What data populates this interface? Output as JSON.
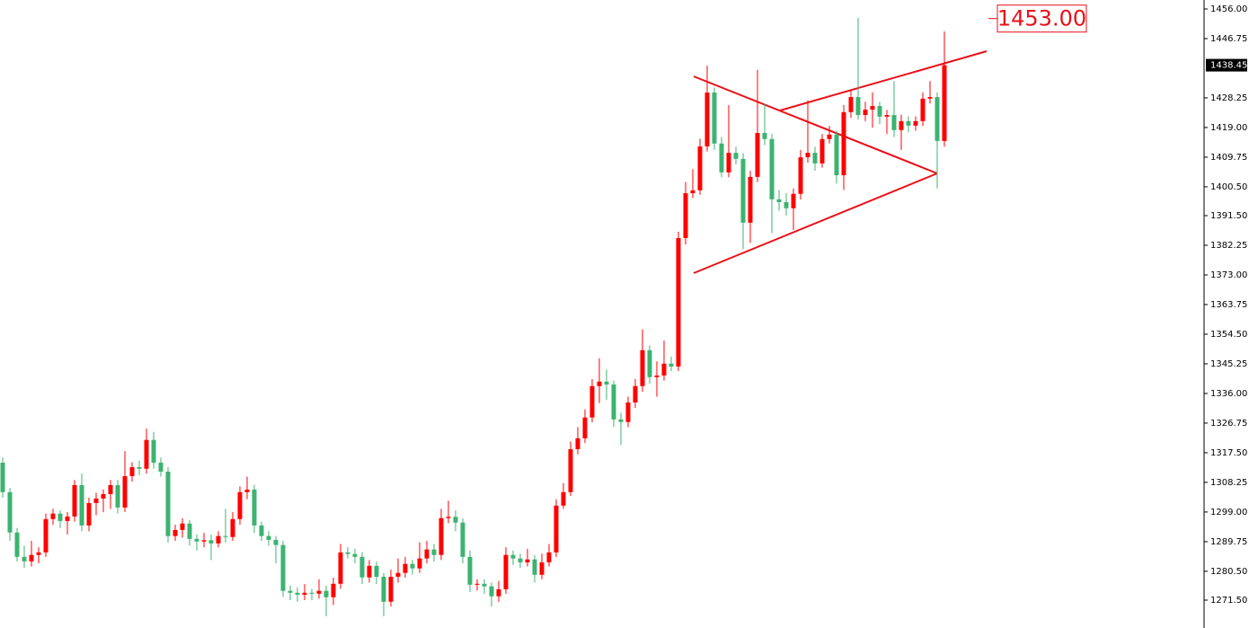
{
  "chart_data": {
    "type": "candlestick",
    "up_color": "#ff0000",
    "down_color": "#3cb371",
    "ylim": [
      1262.8,
      1458.8
    ],
    "yticks": [
      {
        "value": 1456,
        "label": "1456.00"
      },
      1446.75,
      1428.25,
      {
        "value": 1419,
        "label": "1419.00"
      },
      1409.75,
      {
        "value": 1400.5,
        "label": "1400.50"
      },
      {
        "value": 1391.5,
        "label": "1391.50"
      },
      1382.25,
      {
        "value": 1373,
        "label": "1373.00"
      },
      1363.75,
      {
        "value": 1354.5,
        "label": "1354.50"
      },
      1345.25,
      {
        "value": 1336,
        "label": "1336.00"
      },
      1326.75,
      {
        "value": 1317.5,
        "label": "1317.50"
      },
      1308.25,
      {
        "value": 1299,
        "label": "1299.00"
      },
      1289.75,
      {
        "value": 1280.5,
        "label": "1280.50"
      },
      {
        "value": 1271.5,
        "label": "1271.50"
      }
    ],
    "current_price": 1438.45,
    "annotation": {
      "value": 1453,
      "label": "1453.00"
    },
    "ohlc": [
      [
        1314.4,
        1316.0,
        1303.5,
        1305.2
      ],
      [
        1305.2,
        1306.5,
        1290.0,
        1292.6
      ],
      [
        1292.6,
        1294.0,
        1283.5,
        1285.0
      ],
      [
        1285.0,
        1288.5,
        1281.5,
        1283.6
      ],
      [
        1283.6,
        1290.0,
        1282.0,
        1285.6
      ],
      [
        1285.6,
        1288.0,
        1283.0,
        1286.4
      ],
      [
        1286.4,
        1298.5,
        1285.0,
        1296.8
      ],
      [
        1296.8,
        1300.0,
        1295.0,
        1298.5
      ],
      [
        1298.5,
        1299.5,
        1294.0,
        1296.2
      ],
      [
        1296.2,
        1299.0,
        1292.0,
        1297.6
      ],
      [
        1297.6,
        1309.0,
        1296.0,
        1307.4
      ],
      [
        1307.4,
        1311.0,
        1293.0,
        1294.8
      ],
      [
        1294.8,
        1303.5,
        1293.0,
        1301.8
      ],
      [
        1301.8,
        1305.0,
        1298.0,
        1303.2
      ],
      [
        1303.2,
        1306.0,
        1299.0,
        1304.6
      ],
      [
        1304.6,
        1309.0,
        1300.0,
        1307.4
      ],
      [
        1307.4,
        1309.0,
        1298.5,
        1300.4
      ],
      [
        1300.4,
        1318.0,
        1299.0,
        1310.2
      ],
      [
        1310.2,
        1314.5,
        1308.5,
        1313.0
      ],
      [
        1313.0,
        1315.0,
        1310.5,
        1312.5
      ],
      [
        1312.5,
        1325.0,
        1311.0,
        1321.5
      ],
      [
        1321.5,
        1324.0,
        1312.5,
        1314.4
      ],
      [
        1314.4,
        1316.0,
        1310.0,
        1311.6
      ],
      [
        1311.6,
        1313.0,
        1289.5,
        1291.5
      ],
      [
        1291.5,
        1295.0,
        1290.0,
        1293.4
      ],
      [
        1293.4,
        1297.0,
        1291.0,
        1295.4
      ],
      [
        1295.4,
        1296.5,
        1288.5,
        1290.6
      ],
      [
        1290.6,
        1292.0,
        1287.0,
        1289.8
      ],
      [
        1289.8,
        1292.5,
        1288.0,
        1290.2
      ],
      [
        1290.2,
        1292.0,
        1284.0,
        1289.2
      ],
      [
        1289.2,
        1293.0,
        1288.0,
        1291.5
      ],
      [
        1291.5,
        1300.0,
        1289.5,
        1291.2
      ],
      [
        1291.2,
        1299.0,
        1290.0,
        1296.8
      ],
      [
        1296.8,
        1307.0,
        1295.0,
        1305.2
      ],
      [
        1305.2,
        1310.0,
        1303.0,
        1306.0
      ],
      [
        1306.0,
        1307.5,
        1292.5,
        1294.8
      ],
      [
        1294.8,
        1296.0,
        1290.0,
        1291.5
      ],
      [
        1291.5,
        1293.0,
        1288.5,
        1290.3
      ],
      [
        1290.3,
        1291.5,
        1283.0,
        1288.7
      ],
      [
        1288.7,
        1290.0,
        1272.5,
        1274.4
      ],
      [
        1274.4,
        1276.0,
        1271.5,
        1273.8
      ],
      [
        1273.8,
        1275.5,
        1271.0,
        1273.2
      ],
      [
        1273.2,
        1276.5,
        1271.5,
        1273.8
      ],
      [
        1273.8,
        1275.0,
        1271.5,
        1273.5
      ],
      [
        1273.5,
        1278.0,
        1272.0,
        1274.4
      ],
      [
        1274.4,
        1276.0,
        1266.5,
        1272.4
      ],
      [
        1272.4,
        1278.5,
        1270.0,
        1276.6
      ],
      [
        1276.6,
        1289.0,
        1275.0,
        1286.4
      ],
      [
        1286.4,
        1288.0,
        1284.5,
        1285.9
      ],
      [
        1285.9,
        1287.5,
        1283.0,
        1285.0
      ],
      [
        1285.0,
        1286.5,
        1276.5,
        1278.6
      ],
      [
        1278.6,
        1284.0,
        1277.0,
        1282.2
      ],
      [
        1282.2,
        1283.5,
        1276.5,
        1278.8
      ],
      [
        1278.8,
        1280.0,
        1266.5,
        1271.0
      ],
      [
        1271.0,
        1281.0,
        1269.5,
        1278.8
      ],
      [
        1278.8,
        1284.5,
        1277.0,
        1280.0
      ],
      [
        1280.0,
        1285.0,
        1278.5,
        1282.8
      ],
      [
        1282.8,
        1284.0,
        1279.5,
        1281.4
      ],
      [
        1281.4,
        1289.5,
        1280.0,
        1284.5
      ],
      [
        1284.5,
        1290.0,
        1283.0,
        1287.3
      ],
      [
        1287.3,
        1289.0,
        1283.5,
        1285.6
      ],
      [
        1285.6,
        1300.0,
        1284.0,
        1297.1
      ],
      [
        1297.1,
        1302.5,
        1295.5,
        1297.5
      ],
      [
        1297.5,
        1299.5,
        1293.0,
        1295.7
      ],
      [
        1295.7,
        1297.0,
        1283.0,
        1285.0
      ],
      [
        1285.0,
        1287.0,
        1274.0,
        1276.3
      ],
      [
        1276.3,
        1278.0,
        1274.5,
        1276.6
      ],
      [
        1276.6,
        1278.0,
        1273.5,
        1275.8
      ],
      [
        1275.8,
        1277.0,
        1269.5,
        1272.7
      ],
      [
        1272.7,
        1277.5,
        1271.0,
        1274.9
      ],
      [
        1274.9,
        1288.0,
        1273.5,
        1285.6
      ],
      [
        1285.6,
        1287.0,
        1282.5,
        1284.5
      ],
      [
        1284.5,
        1286.0,
        1281.5,
        1283.3
      ],
      [
        1283.3,
        1287.5,
        1282.0,
        1284.2
      ],
      [
        1284.2,
        1285.5,
        1277.0,
        1279.4
      ],
      [
        1279.4,
        1286.0,
        1278.0,
        1283.3
      ],
      [
        1283.3,
        1289.0,
        1282.0,
        1286.4
      ],
      [
        1286.4,
        1303.0,
        1285.0,
        1301.0
      ],
      [
        1301.0,
        1308.0,
        1300.0,
        1305.2
      ],
      [
        1305.2,
        1321.0,
        1304.0,
        1318.6
      ],
      [
        1318.6,
        1325.5,
        1317.0,
        1322.0
      ],
      [
        1322.0,
        1331.0,
        1320.5,
        1328.5
      ],
      [
        1328.5,
        1340.5,
        1327.0,
        1338.3
      ],
      [
        1338.3,
        1347.0,
        1333.0,
        1339.7
      ],
      [
        1339.7,
        1343.5,
        1334.0,
        1338.8
      ],
      [
        1338.8,
        1340.0,
        1325.5,
        1327.9
      ],
      [
        1327.9,
        1330.0,
        1320.0,
        1327.1
      ],
      [
        1327.1,
        1335.0,
        1325.5,
        1333.2
      ],
      [
        1333.2,
        1340.5,
        1331.5,
        1338.3
      ],
      [
        1338.3,
        1356.0,
        1336.5,
        1349.5
      ],
      [
        1349.5,
        1351.0,
        1339.0,
        1341.1
      ],
      [
        1341.1,
        1346.0,
        1335.0,
        1341.6
      ],
      [
        1341.6,
        1352.5,
        1340.0,
        1345.3
      ],
      [
        1345.3,
        1347.5,
        1343.0,
        1344.4
      ],
      [
        1344.4,
        1386.5,
        1343.0,
        1384.5
      ],
      [
        1384.5,
        1402.0,
        1382.5,
        1398.5
      ],
      [
        1398.5,
        1406.0,
        1397.0,
        1399.4
      ],
      [
        1399.4,
        1415.5,
        1398.0,
        1413.1
      ],
      [
        1413.1,
        1438.3,
        1411.5,
        1429.9
      ],
      [
        1429.9,
        1431.5,
        1412.0,
        1414.0
      ],
      [
        1414.0,
        1416.0,
        1403.5,
        1405.0
      ],
      [
        1405.0,
        1426.0,
        1403.5,
        1411.1
      ],
      [
        1411.1,
        1413.0,
        1407.5,
        1409.2
      ],
      [
        1409.2,
        1411.0,
        1381.0,
        1389.3
      ],
      [
        1389.3,
        1405.5,
        1383.0,
        1403.6
      ],
      [
        1403.6,
        1437.0,
        1402.0,
        1417.3
      ],
      [
        1417.3,
        1426.5,
        1413.5,
        1415.4
      ],
      [
        1415.4,
        1417.0,
        1386.0,
        1396.6
      ],
      [
        1396.6,
        1399.5,
        1393.0,
        1395.7
      ],
      [
        1395.7,
        1398.5,
        1391.5,
        1393.8
      ],
      [
        1393.8,
        1400.0,
        1387.0,
        1398.3
      ],
      [
        1398.3,
        1412.0,
        1396.5,
        1409.7
      ],
      [
        1409.7,
        1427.5,
        1408.0,
        1411.1
      ],
      [
        1411.1,
        1413.0,
        1405.5,
        1407.8
      ],
      [
        1407.8,
        1417.0,
        1406.5,
        1415.4
      ],
      [
        1415.4,
        1419.5,
        1414.0,
        1416.8
      ],
      [
        1416.8,
        1418.0,
        1401.5,
        1404.1
      ],
      [
        1404.1,
        1426.0,
        1399.5,
        1423.8
      ],
      [
        1423.8,
        1430.5,
        1422.0,
        1428.5
      ],
      [
        1428.5,
        1453.2,
        1421.5,
        1422.9
      ],
      [
        1422.9,
        1427.0,
        1421.0,
        1424.6
      ],
      [
        1424.6,
        1430.0,
        1419.0,
        1425.7
      ],
      [
        1425.7,
        1427.0,
        1420.0,
        1422.4
      ],
      [
        1422.4,
        1424.5,
        1417.0,
        1422.9
      ],
      [
        1422.9,
        1433.5,
        1416.0,
        1418.2
      ],
      [
        1418.2,
        1423.0,
        1412.0,
        1421.0
      ],
      [
        1421.0,
        1422.5,
        1417.5,
        1419.6
      ],
      [
        1419.6,
        1422.5,
        1418.0,
        1421.0
      ],
      [
        1421.0,
        1430.0,
        1419.5,
        1428.0
      ],
      [
        1428.0,
        1433.5,
        1426.5,
        1428.5
      ],
      [
        1428.5,
        1430.0,
        1400.0,
        1414.8
      ],
      [
        1414.8,
        1449.0,
        1413.0,
        1438.45
      ]
    ]
  }
}
